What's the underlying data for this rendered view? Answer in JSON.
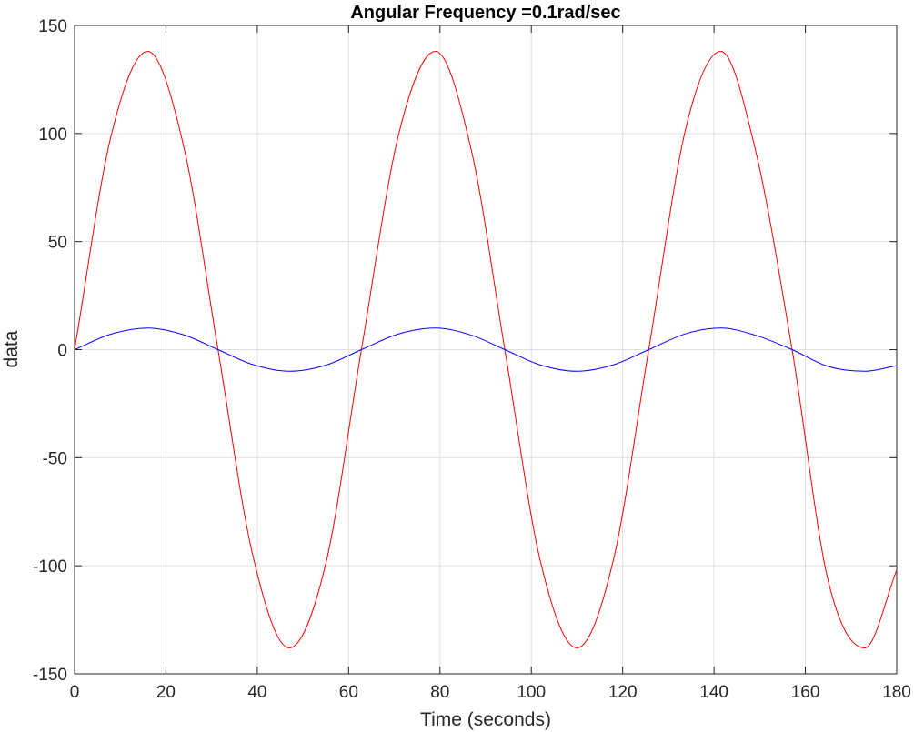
{
  "chart_data": {
    "type": "line",
    "title": "Angular Frequency =0.1rad/sec",
    "xlabel": "Time (seconds)",
    "ylabel": "data",
    "xlim": [
      0,
      180
    ],
    "ylim": [
      -150,
      150
    ],
    "xticks": [
      0,
      20,
      40,
      60,
      80,
      100,
      120,
      140,
      160,
      180
    ],
    "yticks": [
      -150,
      -100,
      -50,
      0,
      50,
      100,
      150
    ],
    "xtick_labels": [
      "0",
      "20",
      "40",
      "60",
      "80",
      "100",
      "120",
      "140",
      "160",
      "180"
    ],
    "ytick_labels": [
      "-150",
      "-100",
      "-50",
      "0",
      "50",
      "100",
      "150"
    ],
    "grid": true,
    "legend": "none",
    "series": [
      {
        "color": "#ff0000",
        "x": [
          0,
          8,
          16,
          24,
          31.4,
          39,
          47,
          55,
          62.8,
          71,
          79,
          87,
          94.2,
          102,
          110,
          118,
          125.7,
          134,
          141.5,
          149,
          157.1,
          165,
          173,
          180
        ],
        "values": [
          0,
          99,
          138,
          93,
          0,
          -95,
          -138,
          -99,
          0,
          100,
          138,
          91,
          0,
          -98,
          -138,
          -97,
          0,
          104,
          138,
          93,
          0,
          -107,
          -138,
          -102
        ]
      },
      {
        "color": "#0000ff",
        "x": [
          0,
          8,
          16,
          24,
          31.4,
          39,
          47,
          55,
          62.8,
          71,
          79,
          87,
          94.2,
          102,
          110,
          118,
          125.7,
          134,
          141.5,
          149,
          157.1,
          165,
          173,
          180
        ],
        "values": [
          0,
          7.2,
          10,
          6.8,
          0,
          -6.9,
          -10,
          -7.2,
          0,
          7.3,
          10,
          6.6,
          0,
          -7.1,
          -10,
          -7.0,
          0,
          7.5,
          10,
          6.7,
          0,
          -7.8,
          -10,
          -7.4
        ]
      }
    ]
  }
}
